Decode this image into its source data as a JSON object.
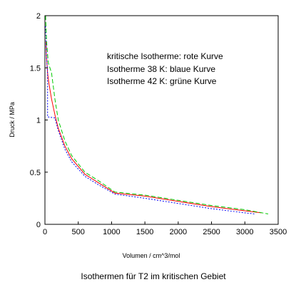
{
  "chart_data": {
    "type": "line",
    "title": "",
    "caption": "Isothermen für T2 im kritischen Gebiet",
    "xlabel": "Volumen / cm^3/mol",
    "ylabel": "Druck / MPa",
    "xlim": [
      0,
      3500
    ],
    "ylim": [
      0,
      2
    ],
    "xticks": [
      0,
      500,
      1000,
      1500,
      2000,
      2500,
      3000,
      3500
    ],
    "yticks": [
      0,
      0.5,
      1,
      1.5,
      2
    ],
    "grid": false,
    "legend": "none",
    "annotations": [
      "kritische Isotherme: rote Kurve",
      "Isotherme 38 K: blaue Kurve",
      "Isotherme 42 K: grüne Kurve"
    ],
    "series": [
      {
        "color": "#ff0000",
        "style": "solid",
        "x": [
          15,
          25,
          40,
          60,
          100,
          150,
          200,
          300,
          400,
          600,
          800,
          1050,
          1500,
          2000,
          2500,
          3000,
          3250
        ],
        "y": [
          1.75,
          1.6,
          1.45,
          1.35,
          1.2,
          1.05,
          0.92,
          0.75,
          0.63,
          0.48,
          0.4,
          0.3,
          0.27,
          0.22,
          0.17,
          0.13,
          0.11
        ]
      },
      {
        "color": "#0000ff",
        "style": "dotted",
        "x": [
          10,
          25,
          40,
          40,
          150,
          200,
          300,
          400,
          600,
          800,
          1050,
          1500,
          2000,
          2500,
          3000,
          3150
        ],
        "y": [
          1.9,
          1.6,
          1.45,
          1.03,
          1.02,
          0.9,
          0.72,
          0.6,
          0.46,
          0.38,
          0.29,
          0.25,
          0.2,
          0.15,
          0.11,
          0.1
        ]
      },
      {
        "color": "#00cc00",
        "style": "dashed",
        "x": [
          10,
          25,
          50,
          100,
          150,
          200,
          300,
          400,
          600,
          800,
          1050,
          1500,
          2000,
          2500,
          3000,
          3350
        ],
        "y": [
          2.0,
          1.75,
          1.55,
          1.45,
          1.2,
          1.0,
          0.8,
          0.66,
          0.5,
          0.42,
          0.31,
          0.28,
          0.23,
          0.18,
          0.14,
          0.1
        ]
      }
    ]
  }
}
